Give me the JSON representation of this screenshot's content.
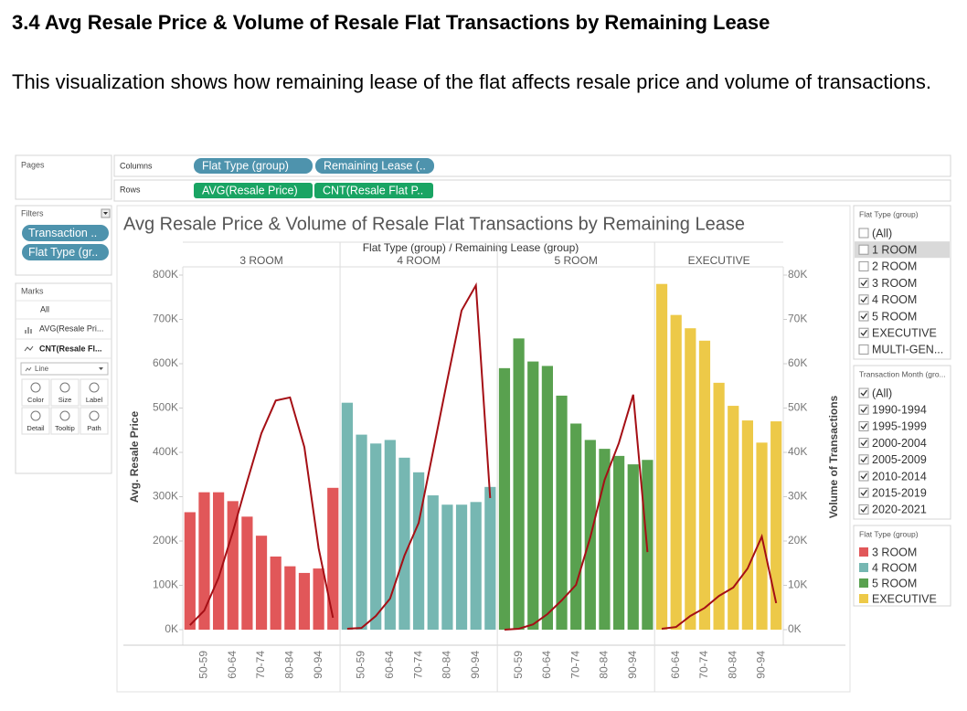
{
  "heading": "3.4 Avg Resale Price & Volume of Resale Flat Transactions by Remaining Lease",
  "paragraph": "This visualization shows how remaining lease of the flat affects resale price and volume of transactions.",
  "tableau": {
    "pages_label": "Pages",
    "columns_label": "Columns",
    "columns": [
      "Flat Type (group)",
      "Remaining Lease (.."
    ],
    "rows_label": "Rows",
    "rows": [
      "AVG(Resale Price)",
      "CNT(Resale Flat P.."
    ],
    "filters_label": "Filters",
    "filters": [
      "Transaction ..",
      "Flat Type (gr.."
    ],
    "marks_label": "Marks",
    "marks_all": "All",
    "marks_fields": [
      "AVG(Resale Pri...",
      "CNT(Resale Fl..."
    ],
    "mark_type": "Line",
    "mark_buttons": [
      "Color",
      "Size",
      "Label",
      "Detail",
      "Tooltip",
      "Path"
    ],
    "filter_cards": [
      {
        "title": "Flat Type (group)",
        "items": [
          {
            "label": "(All)",
            "checked": false
          },
          {
            "label": "1 ROOM",
            "checked": false,
            "highlighted": true
          },
          {
            "label": "2 ROOM",
            "checked": false
          },
          {
            "label": "3 ROOM",
            "checked": true
          },
          {
            "label": "4 ROOM",
            "checked": true
          },
          {
            "label": "5 ROOM",
            "checked": true
          },
          {
            "label": "EXECUTIVE",
            "checked": true
          },
          {
            "label": "MULTI-GEN...",
            "checked": false
          }
        ]
      },
      {
        "title": "Transaction Month (gro...",
        "items": [
          {
            "label": "(All)",
            "checked": true
          },
          {
            "label": "1990-1994",
            "checked": true
          },
          {
            "label": "1995-1999",
            "checked": true
          },
          {
            "label": "2000-2004",
            "checked": true
          },
          {
            "label": "2005-2009",
            "checked": true
          },
          {
            "label": "2010-2014",
            "checked": true
          },
          {
            "label": "2015-2019",
            "checked": true
          },
          {
            "label": "2020-2021",
            "checked": true
          }
        ]
      }
    ]
  },
  "chart_data": {
    "type": "combo",
    "title": "Avg Resale Price & Volume of Resale Flat Transactions by Remaining Lease",
    "header": "Flat Type (group) / Remaining Lease (group)",
    "y_label": "Avg. Resale Price",
    "y2_label": "Volume of Transactions",
    "legend_title": "Flat Type (group)",
    "line_color": "#a50f15",
    "ylim": [
      0,
      800000
    ],
    "yticks": [
      {
        "value": 0,
        "label": "0K"
      },
      {
        "value": 100000,
        "label": "100K"
      },
      {
        "value": 200000,
        "label": "200K"
      },
      {
        "value": 300000,
        "label": "300K"
      },
      {
        "value": 400000,
        "label": "400K"
      },
      {
        "value": 500000,
        "label": "500K"
      },
      {
        "value": 600000,
        "label": "600K"
      },
      {
        "value": 700000,
        "label": "700K"
      },
      {
        "value": 800000,
        "label": "800K"
      }
    ],
    "y2lim": [
      0,
      80000
    ],
    "y2ticks": [
      {
        "value": 0,
        "label": "0K"
      },
      {
        "value": 10000,
        "label": "10K"
      },
      {
        "value": 20000,
        "label": "20K"
      },
      {
        "value": 30000,
        "label": "30K"
      },
      {
        "value": 40000,
        "label": "40K"
      },
      {
        "value": 50000,
        "label": "50K"
      },
      {
        "value": 60000,
        "label": "60K"
      },
      {
        "value": 70000,
        "label": "70K"
      },
      {
        "value": 80000,
        "label": "80K"
      }
    ],
    "panels": [
      {
        "name": "3 ROOM",
        "color": "#e15759",
        "categories": [
          null,
          "50-59",
          null,
          "60-64",
          null,
          "70-74",
          null,
          "80-84",
          null,
          "90-94",
          null
        ],
        "values": [
          265000,
          310000,
          310000,
          290000,
          255000,
          212000,
          165000,
          143000,
          128000,
          138000,
          320000
        ],
        "volumes": [
          1000,
          4300,
          11700,
          22100,
          33400,
          44300,
          51700,
          52400,
          41200,
          18400,
          2700
        ]
      },
      {
        "name": "4 ROOM",
        "color": "#76b7b2",
        "categories": [
          null,
          "50-59",
          null,
          "60-64",
          null,
          "70-74",
          null,
          "80-84",
          null,
          "90-94",
          null
        ],
        "values": [
          512000,
          440000,
          420000,
          428000,
          388000,
          355000,
          303000,
          282000,
          282000,
          288000,
          322000
        ],
        "volumes": [
          200,
          400,
          3100,
          7000,
          16700,
          24100,
          40200,
          56300,
          72000,
          77700,
          29700
        ]
      },
      {
        "name": "5 ROOM",
        "color": "#59a14f",
        "categories": [
          null,
          "50-59",
          null,
          "60-64",
          null,
          "70-74",
          null,
          "80-84",
          null,
          "90-94",
          null
        ],
        "values": [
          590000,
          657000,
          605000,
          595000,
          528000,
          465000,
          428000,
          408000,
          392000,
          373000,
          383000
        ],
        "volumes": [
          0,
          200,
          1200,
          3500,
          6600,
          10100,
          20800,
          33800,
          42100,
          53000,
          17500
        ]
      },
      {
        "name": "EXECUTIVE",
        "color": "#edc948",
        "categories": [
          null,
          "60-64",
          null,
          "70-74",
          null,
          "80-84",
          null,
          "90-94",
          null
        ],
        "values": [
          780000,
          710000,
          680000,
          652000,
          557000,
          505000,
          472000,
          422000,
          470000
        ],
        "volumes": [
          200,
          600,
          3100,
          4900,
          7600,
          9500,
          13800,
          21000,
          6000
        ]
      }
    ]
  }
}
